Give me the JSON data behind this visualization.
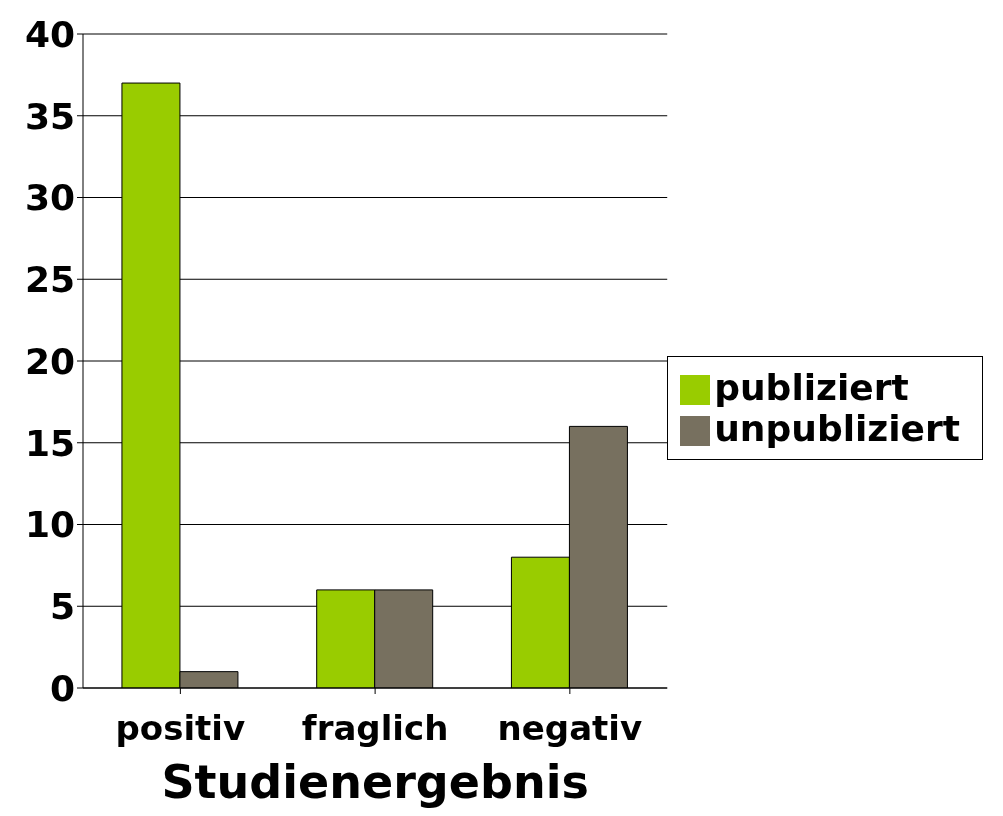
{
  "chart_data": {
    "type": "bar",
    "xlabel": "Studienergebnis",
    "categories": [
      "positiv",
      "fraglich",
      "negativ"
    ],
    "series": [
      {
        "name": "publiziert",
        "color": "#99cc00",
        "values": [
          37,
          6,
          8
        ]
      },
      {
        "name": "unpubliziert",
        "color": "#77705f",
        "values": [
          1,
          6,
          16
        ]
      }
    ],
    "ylim": [
      0,
      40
    ],
    "yticks": [
      0,
      5,
      10,
      15,
      20,
      25,
      30,
      35,
      40
    ],
    "grid": "y",
    "legend": "right"
  }
}
